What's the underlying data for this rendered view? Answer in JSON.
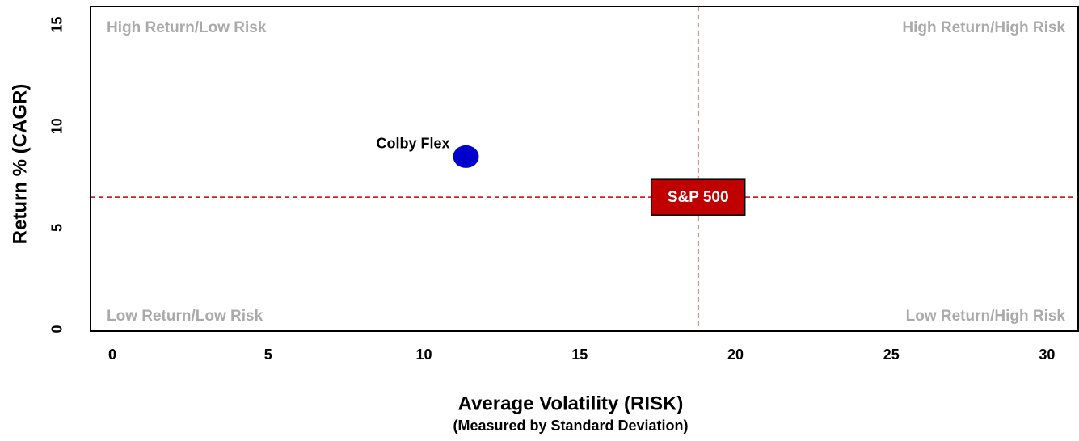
{
  "chart_data": {
    "type": "scatter",
    "x_label": "Average Volatility (RISK)",
    "x_sublabel": "(Measured by Standard Deviation)",
    "y_label": "Return % (CAGR)",
    "xlim": [
      -0.7,
      31
    ],
    "ylim": [
      -0.1,
      15.9
    ],
    "xticks": [
      0,
      5,
      10,
      15,
      20,
      25,
      30
    ],
    "yticks": [
      0,
      5,
      10,
      15
    ],
    "series": [
      {
        "name": "Colby Flex",
        "color": "#0000cc",
        "x": [
          11.35
        ],
        "values": [
          8.5
        ]
      }
    ],
    "benchmark": {
      "name": "S&P 500",
      "color": "#c00000",
      "x": 18.8,
      "y": 6.5
    },
    "annotations": {
      "top_left": "High Return/Low Risk",
      "top_right": "High Return/High Risk",
      "bottom_left": "Low Return/Low Risk",
      "bottom_right": "Low Return/High Risk"
    }
  }
}
